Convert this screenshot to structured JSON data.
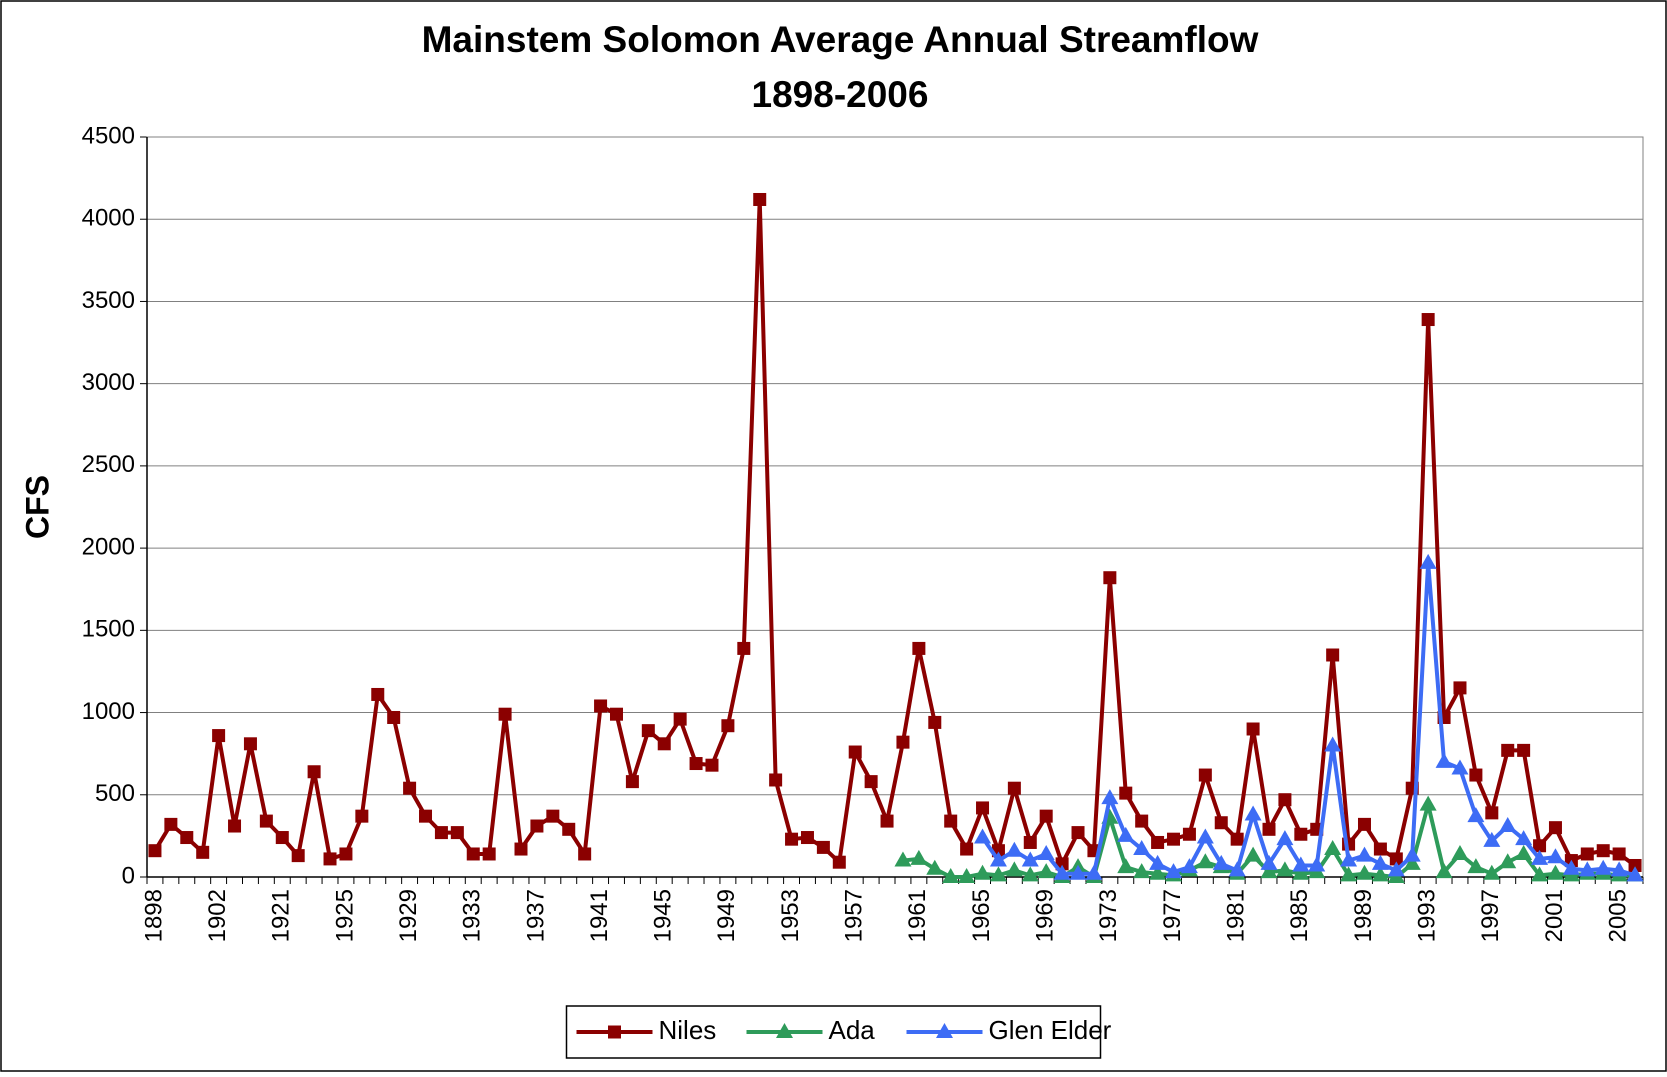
{
  "chart_data": {
    "type": "line",
    "title": "Mainstem Solomon Average Annual Streamflow",
    "subtitle": "1898-2006",
    "y_label": "CFS",
    "categories": [
      "1898",
      null,
      null,
      null,
      "1902",
      null,
      null,
      null,
      "1921",
      null,
      null,
      null,
      "1925",
      null,
      null,
      null,
      "1929",
      null,
      null,
      null,
      "1933",
      null,
      null,
      null,
      "1937",
      null,
      null,
      null,
      "1941",
      null,
      null,
      null,
      "1945",
      null,
      null,
      null,
      "1949",
      null,
      null,
      null,
      "1953",
      null,
      null,
      null,
      "1957",
      null,
      null,
      null,
      "1961",
      null,
      null,
      null,
      "1965",
      null,
      null,
      null,
      "1969",
      null,
      null,
      null,
      "1973",
      null,
      null,
      null,
      "1977",
      null,
      null,
      null,
      "1981",
      null,
      null,
      null,
      "1985",
      null,
      null,
      null,
      "1989",
      null,
      null,
      null,
      "1993",
      null,
      null,
      null,
      "1997",
      null,
      null,
      null,
      "2001",
      null,
      null,
      null,
      "2005",
      null
    ],
    "series": [
      {
        "name": "Niles",
        "color": "#8b0000",
        "marker": "square",
        "values": [
          160,
          320,
          240,
          150,
          860,
          310,
          810,
          340,
          240,
          130,
          640,
          110,
          140,
          370,
          1110,
          970,
          540,
          370,
          270,
          270,
          140,
          140,
          990,
          170,
          310,
          370,
          290,
          140,
          1040,
          990,
          580,
          890,
          810,
          960,
          690,
          680,
          920,
          1390,
          4120,
          590,
          230,
          240,
          180,
          90,
          760,
          580,
          340,
          820,
          1390,
          940,
          340,
          170,
          420,
          160,
          540,
          210,
          370,
          80,
          270,
          160,
          1820,
          510,
          340,
          210,
          230,
          260,
          620,
          330,
          230,
          900,
          290,
          470,
          260,
          290,
          1350,
          200,
          320,
          170,
          110,
          540,
          3390,
          970,
          1150,
          620,
          390,
          770,
          770,
          190,
          300,
          100,
          140,
          160,
          140,
          70
        ]
      },
      {
        "name": "Ada",
        "color": "#2e9b5a",
        "marker": "triangle",
        "values": [
          null,
          null,
          null,
          null,
          null,
          null,
          null,
          null,
          null,
          null,
          null,
          null,
          null,
          null,
          null,
          null,
          null,
          null,
          null,
          null,
          null,
          null,
          null,
          null,
          null,
          null,
          null,
          null,
          null,
          null,
          null,
          null,
          null,
          null,
          null,
          null,
          null,
          null,
          null,
          null,
          null,
          null,
          null,
          null,
          null,
          null,
          null,
          100,
          110,
          50,
          0,
          0,
          20,
          10,
          40,
          10,
          30,
          0,
          60,
          0,
          360,
          60,
          30,
          20,
          10,
          40,
          90,
          60,
          20,
          130,
          30,
          40,
          20,
          30,
          170,
          10,
          20,
          10,
          0,
          80,
          440,
          30,
          140,
          60,
          20,
          90,
          140,
          10,
          20,
          10,
          20,
          20,
          10,
          10
        ]
      },
      {
        "name": "Glen Elder",
        "color": "#3d6cf5",
        "marker": "triangle",
        "values": [
          null,
          null,
          null,
          null,
          null,
          null,
          null,
          null,
          null,
          null,
          null,
          null,
          null,
          null,
          null,
          null,
          null,
          null,
          null,
          null,
          null,
          null,
          null,
          null,
          null,
          null,
          null,
          null,
          null,
          null,
          null,
          null,
          null,
          null,
          null,
          null,
          null,
          null,
          null,
          null,
          null,
          null,
          null,
          null,
          null,
          null,
          null,
          null,
          null,
          null,
          null,
          null,
          240,
          100,
          160,
          100,
          140,
          20,
          20,
          20,
          480,
          250,
          170,
          80,
          30,
          60,
          240,
          80,
          40,
          380,
          80,
          230,
          70,
          70,
          800,
          100,
          130,
          80,
          40,
          130,
          1910,
          700,
          660,
          370,
          220,
          310,
          230,
          110,
          120,
          50,
          40,
          50,
          40,
          10
        ]
      }
    ],
    "ylim": [
      0,
      4500
    ],
    "yticks": [
      0,
      500,
      1000,
      1500,
      2000,
      2500,
      3000,
      3500,
      4000,
      4500
    ],
    "grid": true,
    "legend": "bottom"
  }
}
